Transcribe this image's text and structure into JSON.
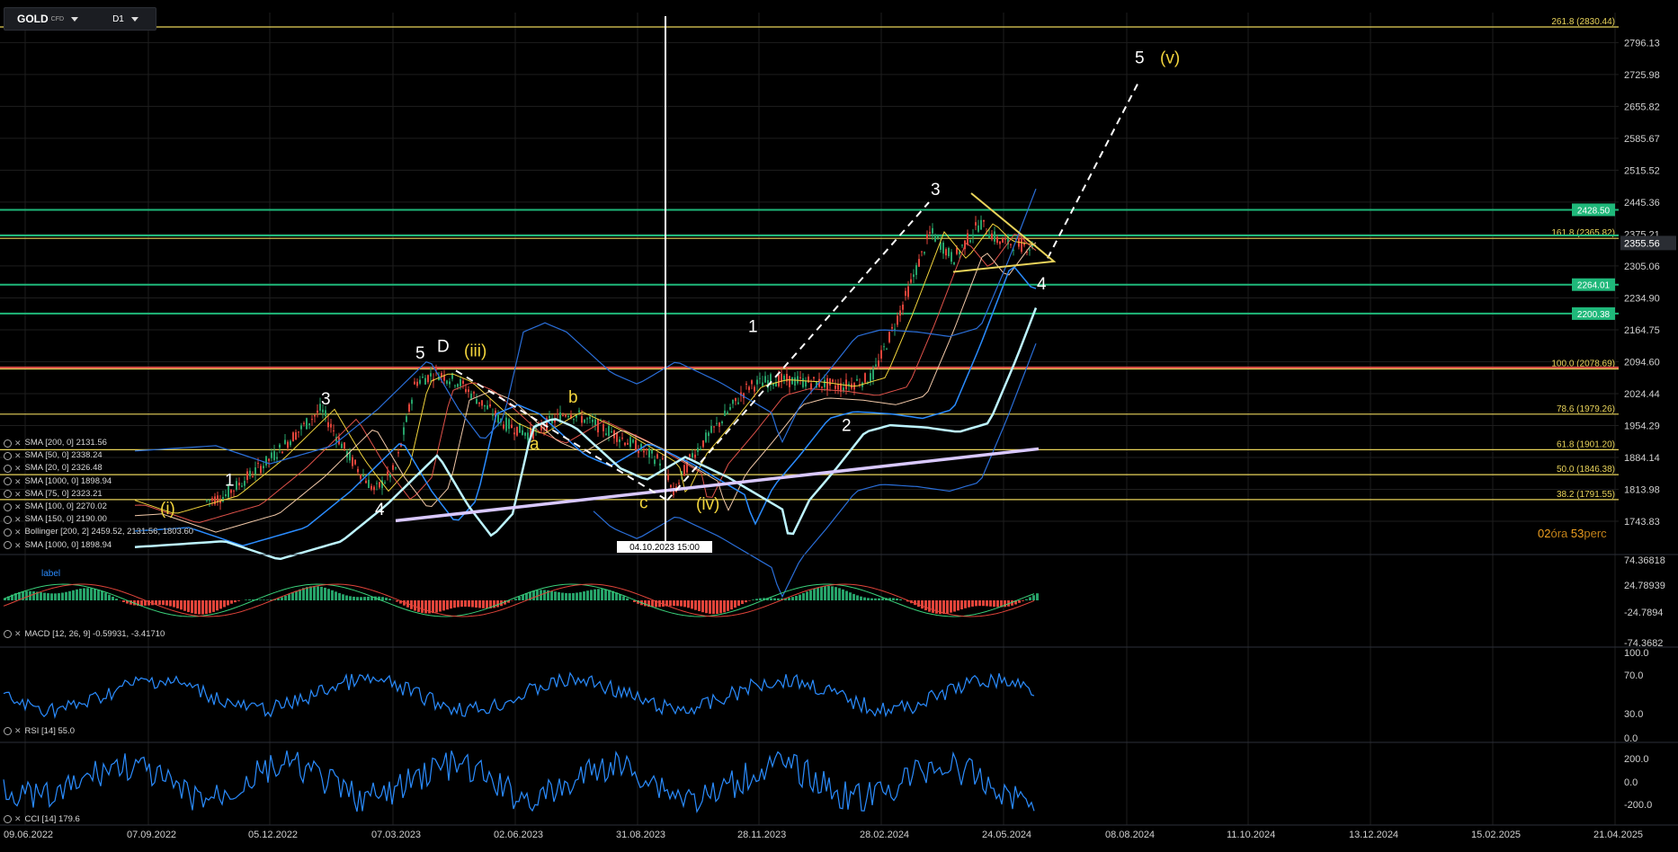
{
  "header": {
    "symbol": "GOLD",
    "symbol_tag": "CFD",
    "timeframe": "D1"
  },
  "colors": {
    "background": "#000000",
    "grid": "#1e1e1e",
    "fib": "#e8d35a",
    "support": "#1fb87a",
    "resistance": "#e0524a",
    "bull": "#26a269",
    "bear": "#e0443a",
    "indicator": "#2a8cff",
    "wave_white": "#ffffff",
    "wave_yellow": "#f2d43c",
    "price_tag": "#2a2d33"
  },
  "legend": [
    "SMA [200, 0] 2131.56",
    "SMA [50, 0] 2338.24",
    "SMA [20, 0] 2326.48",
    "SMA [1000, 0] 1898.94",
    "SMA [75, 0] 2323.21",
    "SMA [100, 0] 2270.02",
    "SMA [150, 0] 2190.00",
    "Bollinger [200, 2] 2459.52, 2131.56, 1803.60",
    "SMA [1000, 0] 1898.94"
  ],
  "macd": {
    "label": "MACD [12, 26, 9] -0.59931, -3.41710",
    "sublabel": "label",
    "ticks": [
      "74.36818",
      "24.78939",
      "-24.7894",
      "-74.3682"
    ]
  },
  "rsi": {
    "label": "RSI [14] 55.0",
    "ticks": [
      "100.0",
      "70.0",
      "30.0",
      "0.0"
    ]
  },
  "cci": {
    "label": "CCI [14] 179.6",
    "ticks": [
      "200.0",
      "0.0",
      "-200.0"
    ]
  },
  "price_axis": {
    "ticks": [
      "2796.13",
      "2725.98",
      "2655.82",
      "2585.67",
      "2515.52",
      "2445.36",
      "2375.21",
      "2305.06",
      "2234.90",
      "2164.75",
      "2094.60",
      "2024.44",
      "1954.29",
      "1884.14",
      "1813.98",
      "1743.83"
    ],
    "current_price": "2355.56"
  },
  "fib_levels": [
    {
      "label": "261.8 (2830.44)",
      "price": 2830.44
    },
    {
      "label": "161.8 (2365.82)",
      "price": 2365.82
    },
    {
      "label": "100.0 (2078.69)",
      "price": 2078.69
    },
    {
      "label": "78.6 (1979.26)",
      "price": 1979.26
    },
    {
      "label": "61.8 (1901.20)",
      "price": 1901.2
    },
    {
      "label": "50.0 (1846.38)",
      "price": 1846.38
    },
    {
      "label": "38.2 (1791.55)",
      "price": 1791.55
    }
  ],
  "horizontal_levels": [
    {
      "label": "2428.50",
      "price": 2428.5,
      "kind": "support"
    },
    {
      "label": "2264.01",
      "price": 2264.01,
      "kind": "support"
    },
    {
      "label": "2200.38",
      "price": 2200.38,
      "kind": "support"
    },
    {
      "label": "",
      "price": 2372.0,
      "kind": "support"
    },
    {
      "label": "",
      "price": 2082.0,
      "kind": "resistance"
    }
  ],
  "time_axis": [
    "09.06.2022",
    "07.09.2022",
    "05.12.2022",
    "07.03.2023",
    "02.06.2023",
    "31.08.2023",
    "28.11.2023",
    "28.02.2024",
    "24.05.2024",
    "08.08.2024",
    "11.10.2024",
    "13.12.2024",
    "15.02.2025",
    "21.04.2025"
  ],
  "crosshair_date": "04.10.2023 15:00",
  "timer": {
    "hours": "02",
    "hours_word": "óra",
    "minutes": "53",
    "minutes_word": "perc"
  },
  "wave_labels": [
    {
      "text": "1",
      "color": "white",
      "x": 250,
      "price": 1822
    },
    {
      "text": "3",
      "color": "white",
      "x": 357,
      "price": 2001
    },
    {
      "text": "4",
      "color": "white",
      "x": 417,
      "price": 1758
    },
    {
      "text": "5",
      "color": "white",
      "x": 462,
      "price": 2101
    },
    {
      "text": "D",
      "color": "white",
      "x": 486,
      "price": 2116
    },
    {
      "text": "(iii)",
      "color": "yellow",
      "x": 516,
      "price": 2106
    },
    {
      "text": "(i)",
      "color": "yellow",
      "x": 178,
      "price": 1760
    },
    {
      "text": "a",
      "color": "yellow",
      "x": 589,
      "price": 1902
    },
    {
      "text": "b",
      "color": "yellow",
      "x": 632,
      "price": 2005
    },
    {
      "text": "c",
      "color": "yellow",
      "x": 711,
      "price": 1772
    },
    {
      "text": "(iv)",
      "color": "yellow",
      "x": 774,
      "price": 1770
    },
    {
      "text": "1",
      "color": "white",
      "x": 832,
      "price": 2160
    },
    {
      "text": "2",
      "color": "white",
      "x": 936,
      "price": 1942
    },
    {
      "text": "3",
      "color": "white",
      "x": 1035,
      "price": 2461
    },
    {
      "text": "4",
      "color": "white",
      "x": 1153,
      "price": 2254
    },
    {
      "text": "5",
      "color": "white",
      "x": 1262,
      "price": 2750
    },
    {
      "text": "(v)",
      "color": "yellow",
      "x": 1290,
      "price": 2750
    }
  ]
}
